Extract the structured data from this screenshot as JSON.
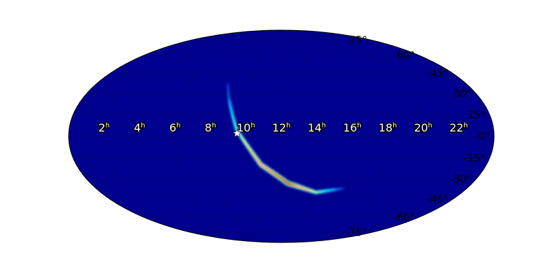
{
  "chart_data": {
    "type": "heatmap",
    "projection": "mollweide",
    "background_color": "#00008f",
    "colormap": "jet",
    "grid": true,
    "ra_tick_labels": [
      "22",
      "20",
      "18",
      "16",
      "14",
      "12",
      "10",
      "8",
      "6",
      "4",
      "2"
    ],
    "ra_tick_values_hours": [
      22,
      20,
      18,
      16,
      14,
      12,
      10,
      8,
      6,
      4,
      2
    ],
    "ra_unit_label": "h",
    "dec_tick_labels": [
      "75°",
      "60°",
      "45°",
      "30°",
      "15°",
      "0°",
      "-15°",
      "-30°",
      "-45°",
      "-60°",
      "-75°"
    ],
    "dec_tick_values": [
      75,
      60,
      45,
      30,
      15,
      0,
      -15,
      -30,
      -45,
      -60,
      -75
    ],
    "probability_ridge": {
      "ra_hours": [
        8.5,
        9.5,
        10.8,
        12.4,
        14.3,
        16.0
      ],
      "dec_deg": [
        38,
        4,
        -19.6,
        -33,
        -39.8,
        -36.7
      ],
      "relative_intensity": [
        0.1,
        0.45,
        0.8,
        1.0,
        0.5,
        0.1
      ]
    },
    "marker": {
      "symbol": "star",
      "color": "#ffffff",
      "ra_hours": 9.5,
      "dec_deg": 2
    }
  }
}
